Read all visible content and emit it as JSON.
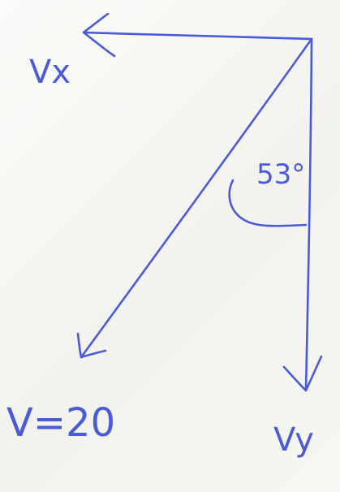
{
  "diagram": {
    "ink_color": "#4a5bd6",
    "labels": {
      "vx": "Vx",
      "vy": "Vy",
      "v": "V=20",
      "angle": "53°"
    }
  }
}
